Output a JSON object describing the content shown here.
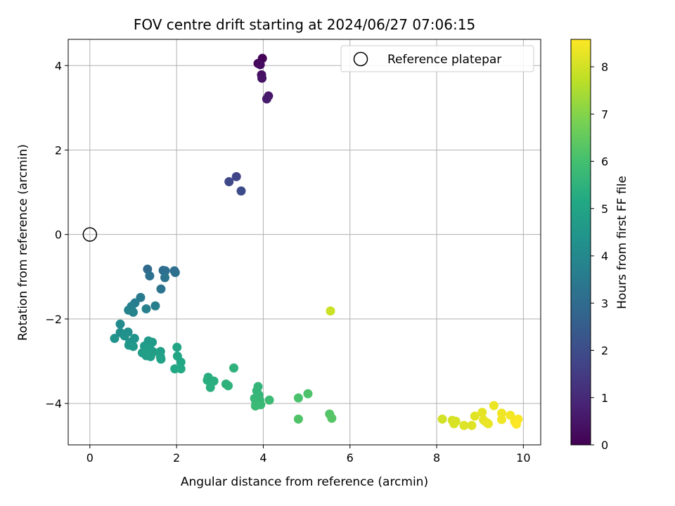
{
  "chart_data": {
    "type": "scatter",
    "title": "FOV centre drift starting at 2024/06/27 07:06:15",
    "xlabel": "Angular distance from reference (arcmin)",
    "ylabel": "Rotation from reference (arcmin)",
    "xlim": [
      -0.5,
      10.4
    ],
    "ylim": [
      -4.98,
      4.62
    ],
    "xticks": [
      0,
      2,
      4,
      6,
      8,
      10
    ],
    "yticks": [
      -4,
      -2,
      0,
      2,
      4
    ],
    "grid": true,
    "legend": {
      "position": "upper-right",
      "label": "Reference platepar"
    },
    "reference_point": {
      "x": 0,
      "y": 0
    },
    "colorbar": {
      "label": "Hours from first FF file",
      "range": [
        0,
        8.58
      ],
      "ticks": [
        0,
        1,
        2,
        3,
        4,
        5,
        6,
        7,
        8
      ],
      "colormap": "viridis"
    },
    "points": [
      {
        "x": 3.98,
        "y": 4.17,
        "c": 0.05
      },
      {
        "x": 3.88,
        "y": 4.05,
        "c": 0.15
      },
      {
        "x": 3.93,
        "y": 4.02,
        "c": 0.25
      },
      {
        "x": 3.96,
        "y": 3.78,
        "c": 0.35
      },
      {
        "x": 3.97,
        "y": 3.7,
        "c": 0.45
      },
      {
        "x": 4.12,
        "y": 3.28,
        "c": 0.55
      },
      {
        "x": 4.08,
        "y": 3.21,
        "c": 0.65
      },
      {
        "x": 3.38,
        "y": 1.37,
        "c": 1.75
      },
      {
        "x": 3.21,
        "y": 1.25,
        "c": 1.85
      },
      {
        "x": 3.49,
        "y": 1.03,
        "c": 1.95
      },
      {
        "x": 1.33,
        "y": -0.82,
        "c": 3.0
      },
      {
        "x": 1.69,
        "y": -0.85,
        "c": 3.05
      },
      {
        "x": 1.74,
        "y": -0.86,
        "c": 3.1
      },
      {
        "x": 1.95,
        "y": -0.86,
        "c": 3.12
      },
      {
        "x": 1.97,
        "y": -0.9,
        "c": 3.15
      },
      {
        "x": 1.38,
        "y": -0.98,
        "c": 3.2
      },
      {
        "x": 1.73,
        "y": -1.02,
        "c": 3.25
      },
      {
        "x": 1.64,
        "y": -1.29,
        "c": 3.3
      },
      {
        "x": 1.17,
        "y": -1.49,
        "c": 3.5
      },
      {
        "x": 1.04,
        "y": -1.62,
        "c": 3.6
      },
      {
        "x": 1.51,
        "y": -1.69,
        "c": 3.65
      },
      {
        "x": 0.96,
        "y": -1.7,
        "c": 3.7
      },
      {
        "x": 1.3,
        "y": -1.76,
        "c": 3.75
      },
      {
        "x": 0.89,
        "y": -1.79,
        "c": 3.8
      },
      {
        "x": 1.0,
        "y": -1.84,
        "c": 3.85
      },
      {
        "x": 0.7,
        "y": -2.12,
        "c": 4.1
      },
      {
        "x": 0.7,
        "y": -2.32,
        "c": 4.2
      },
      {
        "x": 0.88,
        "y": -2.31,
        "c": 4.25
      },
      {
        "x": 0.8,
        "y": -2.4,
        "c": 4.3
      },
      {
        "x": 0.57,
        "y": -2.46,
        "c": 4.35
      },
      {
        "x": 1.03,
        "y": -2.46,
        "c": 4.4
      },
      {
        "x": 0.92,
        "y": -2.55,
        "c": 4.45
      },
      {
        "x": 0.9,
        "y": -2.62,
        "c": 4.5
      },
      {
        "x": 1.0,
        "y": -2.65,
        "c": 4.55
      },
      {
        "x": 1.35,
        "y": -2.52,
        "c": 4.6
      },
      {
        "x": 1.44,
        "y": -2.55,
        "c": 4.62
      },
      {
        "x": 1.26,
        "y": -2.64,
        "c": 4.65
      },
      {
        "x": 1.38,
        "y": -2.68,
        "c": 4.7
      },
      {
        "x": 1.46,
        "y": -2.78,
        "c": 4.72
      },
      {
        "x": 1.21,
        "y": -2.8,
        "c": 4.75
      },
      {
        "x": 1.3,
        "y": -2.87,
        "c": 4.78
      },
      {
        "x": 1.4,
        "y": -2.89,
        "c": 4.8
      },
      {
        "x": 1.33,
        "y": -2.75,
        "c": 4.82
      },
      {
        "x": 1.63,
        "y": -2.77,
        "c": 4.85
      },
      {
        "x": 1.63,
        "y": -2.9,
        "c": 4.9
      },
      {
        "x": 1.64,
        "y": -2.95,
        "c": 4.92
      },
      {
        "x": 2.01,
        "y": -2.67,
        "c": 5.0
      },
      {
        "x": 2.02,
        "y": -2.88,
        "c": 5.05
      },
      {
        "x": 2.1,
        "y": -3.02,
        "c": 5.1
      },
      {
        "x": 1.96,
        "y": -3.18,
        "c": 5.15
      },
      {
        "x": 2.1,
        "y": -3.18,
        "c": 5.18
      },
      {
        "x": 2.73,
        "y": -3.38,
        "c": 5.3
      },
      {
        "x": 2.71,
        "y": -3.45,
        "c": 5.35
      },
      {
        "x": 2.86,
        "y": -3.47,
        "c": 5.38
      },
      {
        "x": 2.78,
        "y": -3.62,
        "c": 5.4
      },
      {
        "x": 3.14,
        "y": -3.54,
        "c": 5.45
      },
      {
        "x": 3.19,
        "y": -3.58,
        "c": 5.48
      },
      {
        "x": 3.32,
        "y": -3.16,
        "c": 5.5
      },
      {
        "x": 3.88,
        "y": -3.6,
        "c": 5.6
      },
      {
        "x": 3.85,
        "y": -3.7,
        "c": 5.62
      },
      {
        "x": 3.9,
        "y": -3.8,
        "c": 5.65
      },
      {
        "x": 3.8,
        "y": -3.88,
        "c": 5.68
      },
      {
        "x": 3.92,
        "y": -3.92,
        "c": 5.7
      },
      {
        "x": 3.83,
        "y": -3.97,
        "c": 5.72
      },
      {
        "x": 3.94,
        "y": -4.03,
        "c": 5.75
      },
      {
        "x": 3.82,
        "y": -4.06,
        "c": 5.78
      },
      {
        "x": 4.14,
        "y": -3.92,
        "c": 5.82
      },
      {
        "x": 4.81,
        "y": -3.87,
        "c": 6.1
      },
      {
        "x": 5.03,
        "y": -3.77,
        "c": 6.15
      },
      {
        "x": 4.81,
        "y": -4.37,
        "c": 6.2
      },
      {
        "x": 5.53,
        "y": -4.25,
        "c": 6.25
      },
      {
        "x": 5.58,
        "y": -4.35,
        "c": 6.3
      },
      {
        "x": 5.55,
        "y": -1.81,
        "c": 7.9
      },
      {
        "x": 8.13,
        "y": -4.37,
        "c": 8.0
      },
      {
        "x": 8.36,
        "y": -4.4,
        "c": 8.05
      },
      {
        "x": 8.44,
        "y": -4.42,
        "c": 8.08
      },
      {
        "x": 8.4,
        "y": -4.48,
        "c": 8.1
      },
      {
        "x": 8.63,
        "y": -4.52,
        "c": 8.15
      },
      {
        "x": 8.81,
        "y": -4.52,
        "c": 8.18
      },
      {
        "x": 8.88,
        "y": -4.3,
        "c": 8.2
      },
      {
        "x": 9.05,
        "y": -4.21,
        "c": 8.25
      },
      {
        "x": 9.08,
        "y": -4.39,
        "c": 8.28
      },
      {
        "x": 9.15,
        "y": -4.45,
        "c": 8.3
      },
      {
        "x": 9.19,
        "y": -4.48,
        "c": 8.33
      },
      {
        "x": 9.32,
        "y": -4.05,
        "c": 8.35
      },
      {
        "x": 9.5,
        "y": -4.23,
        "c": 8.4
      },
      {
        "x": 9.5,
        "y": -4.38,
        "c": 8.42
      },
      {
        "x": 9.7,
        "y": -4.28,
        "c": 8.45
      },
      {
        "x": 9.8,
        "y": -4.43,
        "c": 8.5
      },
      {
        "x": 9.88,
        "y": -4.37,
        "c": 8.52
      },
      {
        "x": 9.84,
        "y": -4.49,
        "c": 8.55
      }
    ]
  }
}
